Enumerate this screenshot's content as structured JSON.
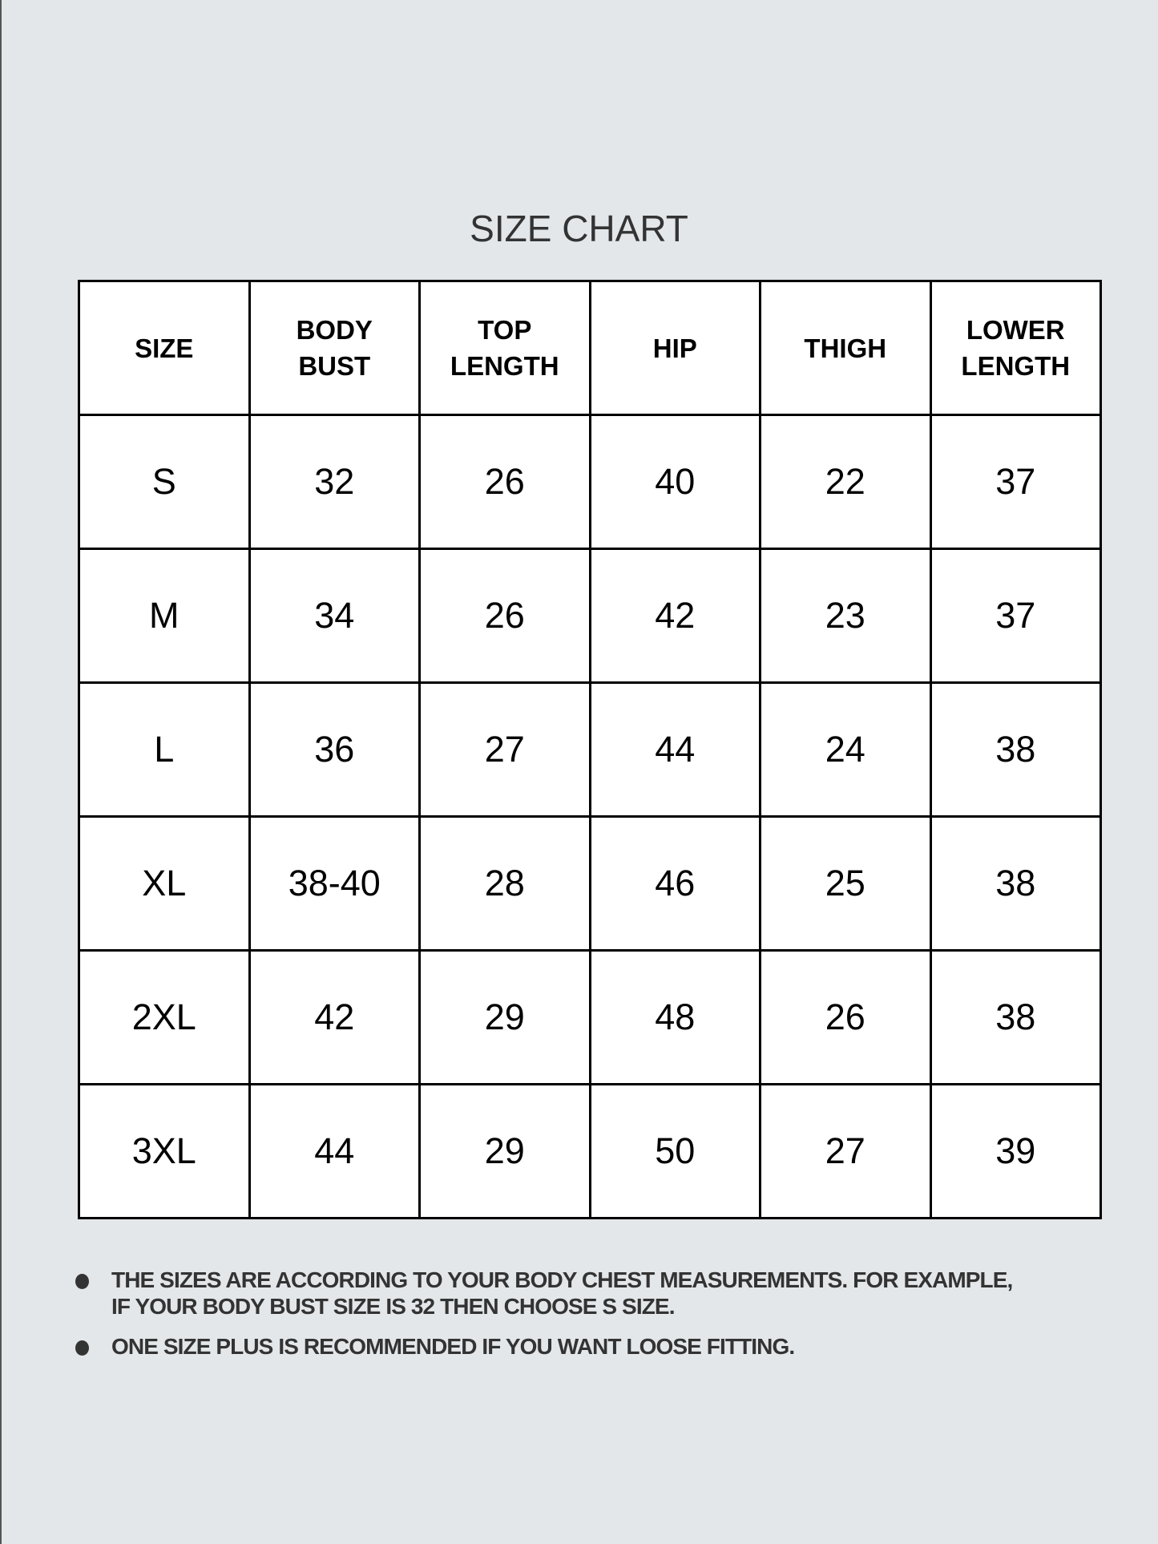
{
  "title": "SIZE CHART",
  "headers": [
    [
      "SIZE"
    ],
    [
      "BODY",
      "BUST"
    ],
    [
      "TOP",
      "LENGTH"
    ],
    [
      "HIP"
    ],
    [
      "THIGH"
    ],
    [
      "LOWER",
      "LENGTH"
    ]
  ],
  "rows": [
    [
      "S",
      "32",
      "26",
      "40",
      "22",
      "37"
    ],
    [
      "M",
      "34",
      "26",
      "42",
      "23",
      "37"
    ],
    [
      "L",
      "36",
      "27",
      "44",
      "24",
      "38"
    ],
    [
      "XL",
      "38-40",
      "28",
      "46",
      "25",
      "38"
    ],
    [
      "2XL",
      "42",
      "29",
      "48",
      "26",
      "38"
    ],
    [
      "3XL",
      "44",
      "29",
      "50",
      "27",
      "39"
    ]
  ],
  "notes": [
    [
      "THE SIZES ARE ACCORDING TO YOUR BODY CHEST MEASUREMENTS. FOR EXAMPLE,",
      "IF YOUR BODY BUST SIZE IS 32 THEN CHOOSE S SIZE."
    ],
    [
      "ONE SIZE PLUS IS RECOMMENDED IF YOU WANT LOOSE FITTING."
    ]
  ],
  "colors": {
    "background": "#e3e7ea",
    "text": "#333333",
    "border": "#000000"
  }
}
